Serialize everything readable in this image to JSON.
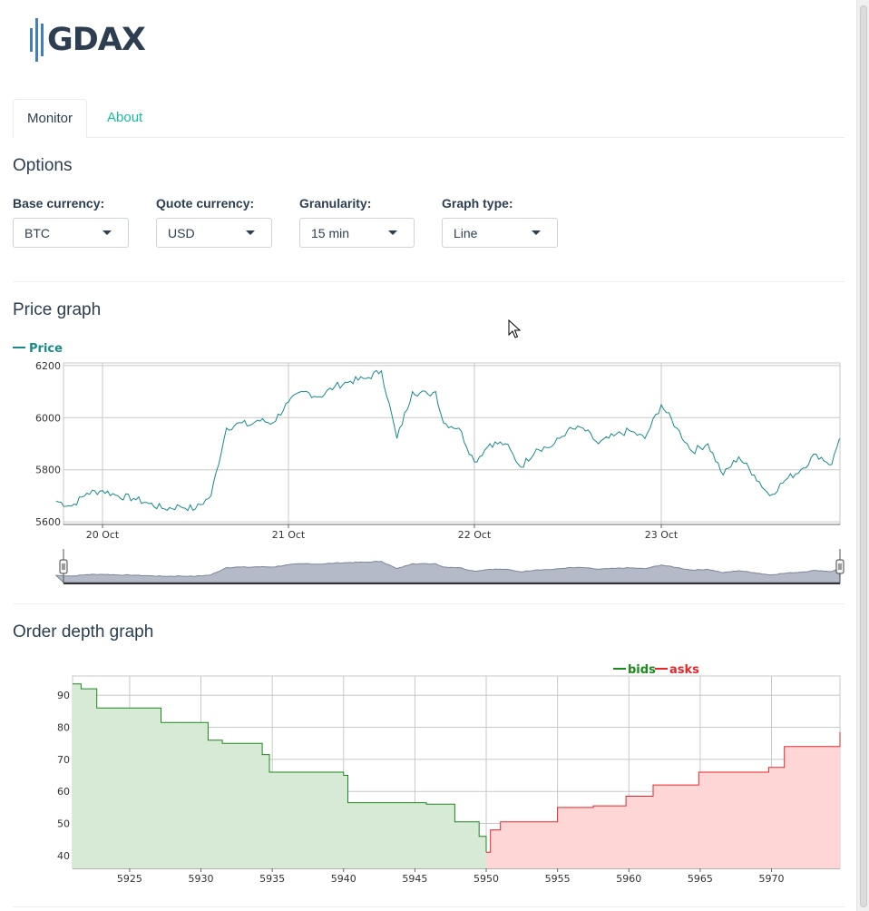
{
  "app": {
    "logo_text": "GDAX"
  },
  "tabs": [
    {
      "label": "Monitor",
      "active": true
    },
    {
      "label": "About",
      "active": false
    }
  ],
  "options": {
    "heading": "Options",
    "fields": [
      {
        "label": "Base currency:",
        "value": "BTC"
      },
      {
        "label": "Quote currency:",
        "value": "USD"
      },
      {
        "label": "Granularity:",
        "value": "15 min"
      },
      {
        "label": "Graph type:",
        "value": "Line"
      }
    ]
  },
  "price_graph": {
    "heading": "Price graph",
    "legend": "Price"
  },
  "order_graph": {
    "heading": "Order depth graph",
    "legend_bids": "bids",
    "legend_asks": "asks"
  },
  "colors": {
    "accent": "#18bc9c",
    "text": "#2c3e50",
    "price": "#1a8a8a",
    "bids": "#1a8a1a",
    "asks": "#e8262a"
  },
  "chart_data": [
    {
      "type": "line",
      "title": "",
      "xlabel": "",
      "ylabel": "",
      "x_ticks": [
        "20 Oct",
        "21 Oct",
        "22 Oct",
        "23 Oct"
      ],
      "yticks": [
        5600,
        5800,
        6000,
        6200
      ],
      "ylim": [
        5590,
        6210
      ],
      "grid": true,
      "legend": "top-left",
      "series": [
        {
          "name": "Price",
          "x": [
            "19 Oct 18:00",
            "19 Oct 20:00",
            "19 Oct 22:00",
            "20 Oct 00:00",
            "20 Oct 02:00",
            "20 Oct 04:00",
            "20 Oct 06:00",
            "20 Oct 08:00",
            "20 Oct 10:00",
            "20 Oct 12:00",
            "20 Oct 14:00",
            "20 Oct 16:00",
            "20 Oct 18:00",
            "20 Oct 19:00",
            "20 Oct 20:00",
            "20 Oct 22:00",
            "21 Oct 00:00",
            "21 Oct 02:00",
            "21 Oct 04:00",
            "21 Oct 06:00",
            "21 Oct 08:00",
            "21 Oct 10:00",
            "21 Oct 12:00",
            "21 Oct 14:00",
            "21 Oct 16:00",
            "21 Oct 18:00",
            "21 Oct 19:00",
            "21 Oct 20:00",
            "21 Oct 22:00",
            "22 Oct 00:00",
            "22 Oct 02:00",
            "22 Oct 04:00",
            "22 Oct 06:00",
            "22 Oct 08:00",
            "22 Oct 10:00",
            "22 Oct 12:00",
            "22 Oct 14:00",
            "22 Oct 16:00",
            "22 Oct 18:00",
            "22 Oct 20:00",
            "22 Oct 22:00",
            "23 Oct 00:00",
            "23 Oct 02:00",
            "23 Oct 04:00",
            "23 Oct 06:00",
            "23 Oct 08:00",
            "23 Oct 10:00",
            "23 Oct 12:00",
            "23 Oct 14:00",
            "23 Oct 16:00",
            "23 Oct 18:00",
            "23 Oct 20:00",
            "23 Oct 22:00",
            "23 Oct 23:00"
          ],
          "values": [
            5680,
            5660,
            5710,
            5720,
            5700,
            5690,
            5670,
            5650,
            5660,
            5650,
            5700,
            5960,
            5980,
            5970,
            5990,
            5980,
            6060,
            6100,
            6080,
            6120,
            6140,
            6150,
            6180,
            5920,
            6100,
            6090,
            6100,
            5980,
            5960,
            5830,
            5900,
            5900,
            5810,
            5880,
            5890,
            5950,
            5960,
            5900,
            5930,
            5950,
            5920,
            6050,
            5960,
            5870,
            5900,
            5780,
            5850,
            5780,
            5700,
            5760,
            5800,
            5860,
            5820,
            5920
          ]
        }
      ]
    },
    {
      "type": "area",
      "title": "",
      "xlabel": "",
      "ylabel": "",
      "x_ticks": [
        5925,
        5930,
        5935,
        5940,
        5945,
        5950,
        5955,
        5960,
        5965,
        5970
      ],
      "y_ticks": [
        40,
        50,
        60,
        70,
        80,
        90
      ],
      "xlim": [
        5921,
        5974.8
      ],
      "ylim": [
        36,
        96
      ],
      "grid": true,
      "legend": "top-right",
      "series": [
        {
          "name": "bids",
          "x": [
            5921,
            5921.6,
            5922.7,
            5924.2,
            5927.2,
            5930.5,
            5931.5,
            5934.3,
            5934.8,
            5940.0,
            5940.3,
            5945.8,
            5947.8,
            5949.5,
            5950.0
          ],
          "values": [
            93.5,
            92,
            86,
            86,
            81.5,
            76,
            75,
            71.5,
            66,
            65,
            56.5,
            56,
            50.5,
            46,
            41
          ]
        },
        {
          "name": "asks",
          "x": [
            5950.0,
            5950.3,
            5950.9,
            5951.0,
            5955.0,
            5957.5,
            5959.8,
            5961.7,
            5964.9,
            5969.8,
            5970.9,
            5974.8
          ],
          "values": [
            41,
            48,
            48,
            50.5,
            55,
            55.5,
            58.5,
            62,
            66,
            67.5,
            74,
            78.5
          ]
        }
      ]
    }
  ]
}
